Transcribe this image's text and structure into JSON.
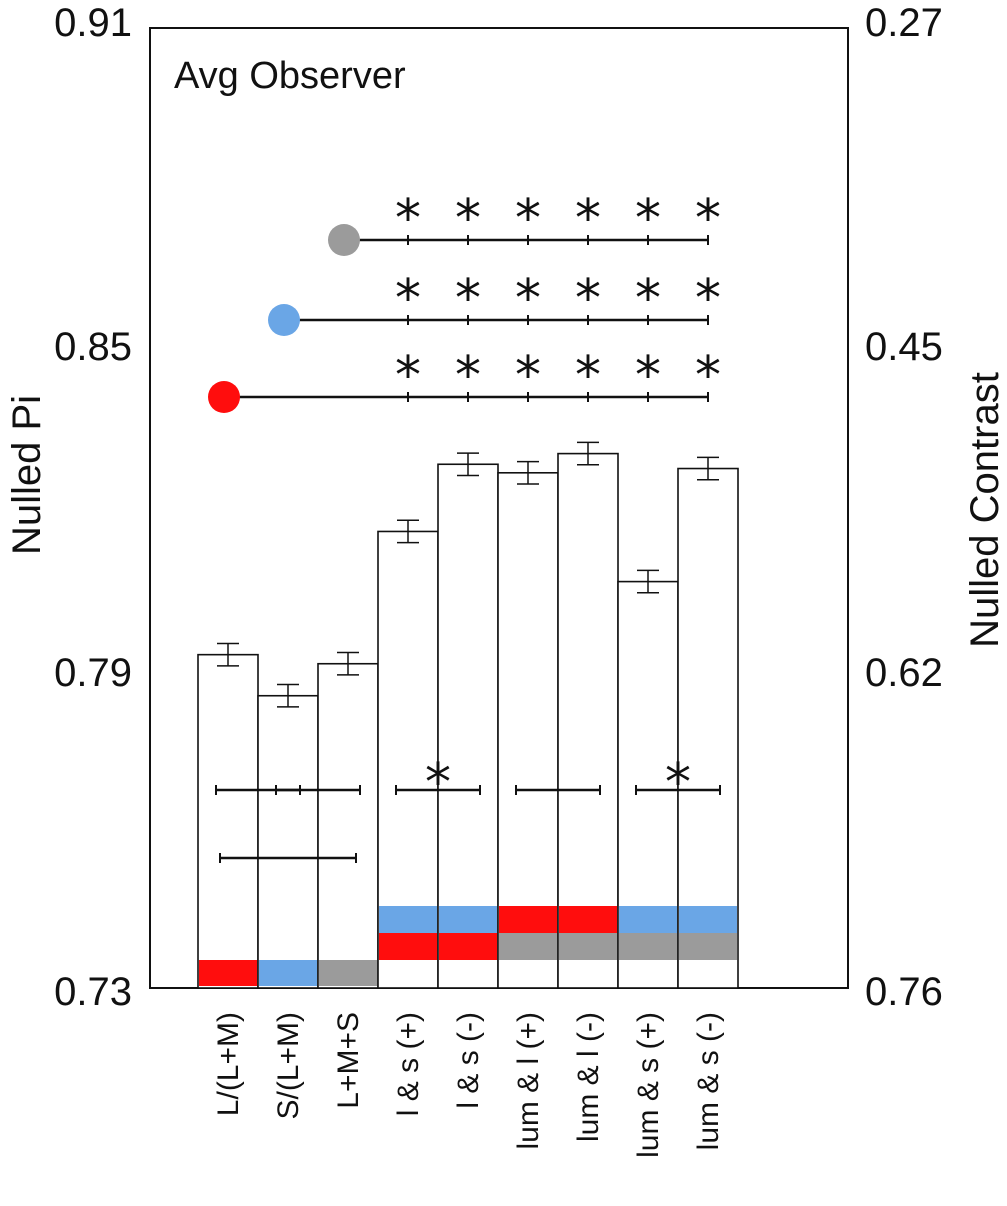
{
  "chart_data": {
    "type": "bar",
    "title": "Avg Observer",
    "ylabel": "Nulled Pi",
    "ylabel_right": "Nulled Contrast",
    "ylim": [
      0.73,
      0.91
    ],
    "yticks": [
      "0.91",
      "0.85",
      "0.79",
      "0.73"
    ],
    "yticks_right": [
      "0.27",
      "0.45",
      "0.62",
      "0.76"
    ],
    "categories": [
      "L/(L+M)",
      "S/(L+M)",
      "L+M+S",
      "l & s (+)",
      "l & s (-)",
      "lum & l (+)",
      "lum & l (-)",
      "lum & s (+)",
      "lum & s (-)"
    ],
    "values": [
      0.7925,
      0.7848,
      0.7908,
      0.8156,
      0.8282,
      0.8266,
      0.8302,
      0.8062,
      0.8274
    ],
    "errors": [
      0.0021,
      0.0021,
      0.0021,
      0.0021,
      0.0021,
      0.0021,
      0.0021,
      0.0021,
      0.0021
    ],
    "swatches": [
      [
        "red"
      ],
      [
        "blue"
      ],
      [
        "gray"
      ],
      [
        "blue",
        "red"
      ],
      [
        "blue",
        "red"
      ],
      [
        "red",
        "gray"
      ],
      [
        "red",
        "gray"
      ],
      [
        "blue",
        "gray"
      ],
      [
        "blue",
        "gray"
      ]
    ],
    "colors": {
      "red": "#ff0d0d",
      "blue": "#6aa6e6",
      "gray": "#9b9b9b",
      "bar_fill": "#ffffff",
      "ink": "#111111"
    },
    "top_comparisons": [
      {
        "marker": "gray",
        "marker_category": 2,
        "star_categories": [
          3,
          4,
          5,
          6,
          7,
          8
        ],
        "star": "*"
      },
      {
        "marker": "blue",
        "marker_category": 1,
        "star_categories": [
          3,
          4,
          5,
          6,
          7,
          8
        ],
        "star": "*"
      },
      {
        "marker": "red",
        "marker_category": 0,
        "star_categories": [
          3,
          4,
          5,
          6,
          7,
          8
        ],
        "star": "*"
      }
    ],
    "pair_comparisons": [
      {
        "from": 0,
        "to": 1,
        "significant": false
      },
      {
        "from": 1,
        "to": 2,
        "significant": false
      },
      {
        "from": 3,
        "to": 4,
        "significant": true,
        "star": "*"
      },
      {
        "from": 5,
        "to": 6,
        "significant": false
      },
      {
        "from": 7,
        "to": 8,
        "significant": true,
        "star": "*"
      },
      {
        "from": 0,
        "to": 2,
        "significant": false
      }
    ]
  }
}
